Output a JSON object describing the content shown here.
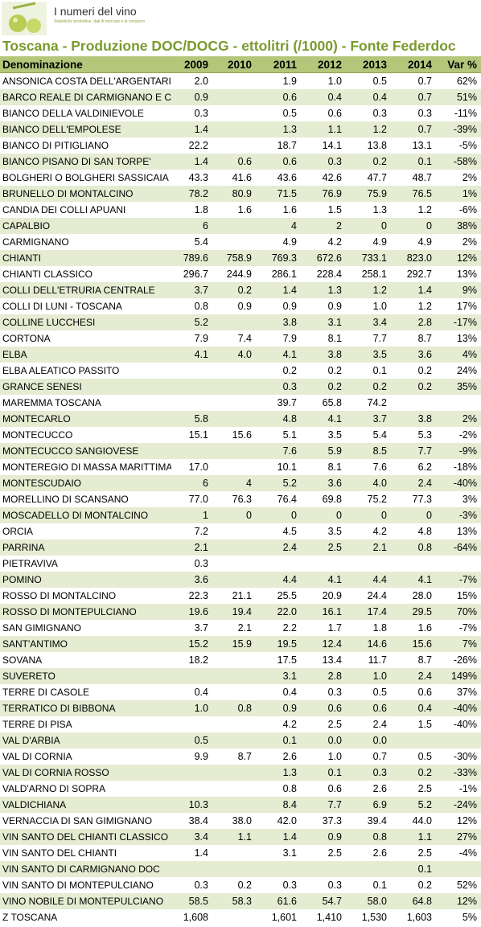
{
  "brand": {
    "name": "I numeri del vino",
    "tagline": "Statistiche produttive, dati di mercato e di consumo"
  },
  "title": "Toscana - Produzione DOC/DOCG - ettolitri (/1000) - Fonte Federdoc",
  "colors": {
    "header_bg": "#b3c77b",
    "row_alt": "#e5ecd2",
    "title": "#7a9a2e"
  },
  "chart_data": {
    "type": "table",
    "columns": [
      "Denominazione",
      "2009",
      "2010",
      "2011",
      "2012",
      "2013",
      "2014",
      "Var %"
    ],
    "rows": [
      {
        "name": "ANSONICA COSTA DELL'ARGENTARI",
        "v": [
          "2.0",
          "",
          "1.9",
          "1.0",
          "0.5",
          "0.7",
          "62%"
        ]
      },
      {
        "name": "BARCO  REALE  DI CARMIGNANO E C",
        "v": [
          "0.9",
          "",
          "0.6",
          "0.4",
          "0.4",
          "0.7",
          "51%"
        ]
      },
      {
        "name": "BIANCO DELLA VALDINIEVOLE",
        "v": [
          "0.3",
          "",
          "0.5",
          "0.6",
          "0.3",
          "0.3",
          "-11%"
        ]
      },
      {
        "name": "BIANCO DELL'EMPOLESE",
        "v": [
          "1.4",
          "",
          "1.3",
          "1.1",
          "1.2",
          "0.7",
          "-39%"
        ]
      },
      {
        "name": "BIANCO DI PITIGLIANO",
        "v": [
          "22.2",
          "",
          "18.7",
          "14.1",
          "13.8",
          "13.1",
          "-5%"
        ]
      },
      {
        "name": "BIANCO PISANO DI SAN TORPE'",
        "v": [
          "1.4",
          "0.6",
          "0.6",
          "0.3",
          "0.2",
          "0.1",
          "-58%"
        ]
      },
      {
        "name": "BOLGHERI O BOLGHERI SASSICAIA",
        "v": [
          "43.3",
          "41.6",
          "43.6",
          "42.6",
          "47.7",
          "48.7",
          "2%"
        ]
      },
      {
        "name": "BRUNELLO DI MONTALCINO",
        "v": [
          "78.2",
          "80.9",
          "71.5",
          "76.9",
          "75.9",
          "76.5",
          "1%"
        ]
      },
      {
        "name": "CANDIA DEI COLLI APUANI",
        "v": [
          "1.8",
          "1.6",
          "1.6",
          "1.5",
          "1.3",
          "1.2",
          "-6%"
        ]
      },
      {
        "name": "CAPALBIO",
        "v": [
          "6",
          "",
          "4",
          "2",
          "0",
          "0",
          "38%"
        ]
      },
      {
        "name": "CARMIGNANO",
        "v": [
          "5.4",
          "",
          "4.9",
          "4.2",
          "4.9",
          "4.9",
          "2%"
        ]
      },
      {
        "name": "CHIANTI",
        "v": [
          "789.6",
          "758.9",
          "769.3",
          "672.6",
          "733.1",
          "823.0",
          "12%"
        ]
      },
      {
        "name": "CHIANTI CLASSICO",
        "v": [
          "296.7",
          "244.9",
          "286.1",
          "228.4",
          "258.1",
          "292.7",
          "13%"
        ]
      },
      {
        "name": "COLLI DELL'ETRURIA CENTRALE",
        "v": [
          "3.7",
          "0.2",
          "1.4",
          "1.3",
          "1.2",
          "1.4",
          "9%"
        ]
      },
      {
        "name": "COLLI DI LUNI - TOSCANA",
        "v": [
          "0.8",
          "0.9",
          "0.9",
          "0.9",
          "1.0",
          "1.2",
          "17%"
        ]
      },
      {
        "name": "COLLINE LUCCHESI",
        "v": [
          "5.2",
          "",
          "3.8",
          "3.1",
          "3.4",
          "2.8",
          "-17%"
        ]
      },
      {
        "name": "CORTONA",
        "v": [
          "7.9",
          "7.4",
          "7.9",
          "8.1",
          "7.7",
          "8.7",
          "13%"
        ]
      },
      {
        "name": "ELBA",
        "v": [
          "4.1",
          "4.0",
          "4.1",
          "3.8",
          "3.5",
          "3.6",
          "4%"
        ]
      },
      {
        "name": "ELBA ALEATICO PASSITO",
        "v": [
          "",
          "",
          "0.2",
          "0.2",
          "0.1",
          "0.2",
          "24%"
        ]
      },
      {
        "name": "GRANCE SENESI",
        "v": [
          "",
          "",
          "0.3",
          "0.2",
          "0.2",
          "0.2",
          "35%"
        ]
      },
      {
        "name": "MAREMMA TOSCANA",
        "v": [
          "",
          "",
          "39.7",
          "65.8",
          "74.2",
          "",
          ""
        ]
      },
      {
        "name": "MONTECARLO",
        "v": [
          "5.8",
          "",
          "4.8",
          "4.1",
          "3.7",
          "3.8",
          "2%"
        ]
      },
      {
        "name": "MONTECUCCO",
        "v": [
          "15.1",
          "15.6",
          "5.1",
          "3.5",
          "5.4",
          "5.3",
          "-2%"
        ]
      },
      {
        "name": "MONTECUCCO SANGIOVESE",
        "v": [
          "",
          "",
          "7.6",
          "5.9",
          "8.5",
          "7.7",
          "-9%"
        ]
      },
      {
        "name": "MONTEREGIO DI MASSA MARITTIMA",
        "v": [
          "17.0",
          "",
          "10.1",
          "8.1",
          "7.6",
          "6.2",
          "-18%"
        ]
      },
      {
        "name": "MONTESCUDAIO",
        "v": [
          "6",
          "4",
          "5.2",
          "3.6",
          "4.0",
          "2.4",
          "-40%"
        ]
      },
      {
        "name": "MORELLINO DI SCANSANO",
        "v": [
          "77.0",
          "76.3",
          "76.4",
          "69.8",
          "75.2",
          "77.3",
          "3%"
        ]
      },
      {
        "name": "MOSCADELLO DI MONTALCINO",
        "v": [
          "1",
          "0",
          "0",
          "0",
          "0",
          "0",
          "-3%"
        ]
      },
      {
        "name": "ORCIA",
        "v": [
          "7.2",
          "",
          "4.5",
          "3.5",
          "4.2",
          "4.8",
          "13%"
        ]
      },
      {
        "name": "PARRINA",
        "v": [
          "2.1",
          "",
          "2.4",
          "2.5",
          "2.1",
          "0.8",
          "-64%"
        ]
      },
      {
        "name": "PIETRAVIVA",
        "v": [
          "0.3",
          "",
          "",
          "",
          "",
          "",
          ""
        ]
      },
      {
        "name": "POMINO",
        "v": [
          "3.6",
          "",
          "4.4",
          "4.1",
          "4.4",
          "4.1",
          "-7%"
        ]
      },
      {
        "name": "ROSSO DI MONTALCINO",
        "v": [
          "22.3",
          "21.1",
          "25.5",
          "20.9",
          "24.4",
          "28.0",
          "15%"
        ]
      },
      {
        "name": "ROSSO DI MONTEPULCIANO",
        "v": [
          "19.6",
          "19.4",
          "22.0",
          "16.1",
          "17.4",
          "29.5",
          "70%"
        ]
      },
      {
        "name": "SAN GIMIGNANO",
        "v": [
          "3.7",
          "2.1",
          "2.2",
          "1.7",
          "1.8",
          "1.6",
          "-7%"
        ]
      },
      {
        "name": "SANT'ANTIMO",
        "v": [
          "15.2",
          "15.9",
          "19.5",
          "12.4",
          "14.6",
          "15.6",
          "7%"
        ]
      },
      {
        "name": "SOVANA",
        "v": [
          "18.2",
          "",
          "17.5",
          "13.4",
          "11.7",
          "8.7",
          "-26%"
        ]
      },
      {
        "name": "SUVERETO",
        "v": [
          "",
          "",
          "3.1",
          "2.8",
          "1.0",
          "2.4",
          "149%"
        ]
      },
      {
        "name": "TERRE DI CASOLE",
        "v": [
          "0.4",
          "",
          "0.4",
          "0.3",
          "0.5",
          "0.6",
          "37%"
        ]
      },
      {
        "name": "TERRATICO DI BIBBONA",
        "v": [
          "1.0",
          "0.8",
          "0.9",
          "0.6",
          "0.6",
          "0.4",
          "-40%"
        ]
      },
      {
        "name": "TERRE DI PISA",
        "v": [
          "",
          "",
          "4.2",
          "2.5",
          "2.4",
          "1.5",
          "-40%"
        ]
      },
      {
        "name": "VAL D'ARBIA",
        "v": [
          "0.5",
          "",
          "0.1",
          "0.0",
          "0.0",
          "",
          ""
        ]
      },
      {
        "name": "VAL DI CORNIA",
        "v": [
          "9.9",
          "8.7",
          "2.6",
          "1.0",
          "0.7",
          "0.5",
          "-30%"
        ]
      },
      {
        "name": "VAL DI CORNIA ROSSO",
        "v": [
          "",
          "",
          "1.3",
          "0.1",
          "0.3",
          "0.2",
          "-33%"
        ]
      },
      {
        "name": "VALD'ARNO DI SOPRA",
        "v": [
          "",
          "",
          "0.8",
          "0.6",
          "2.6",
          "2.5",
          "-1%"
        ]
      },
      {
        "name": "VALDICHIANA",
        "v": [
          "10.3",
          "",
          "8.4",
          "7.7",
          "6.9",
          "5.2",
          "-24%"
        ]
      },
      {
        "name": "VERNACCIA DI SAN GIMIGNANO",
        "v": [
          "38.4",
          "38.0",
          "42.0",
          "37.3",
          "39.4",
          "44.0",
          "12%"
        ]
      },
      {
        "name": "VIN  SANTO  DEL CHIANTI  CLASSICO",
        "v": [
          "3.4",
          "1.1",
          "1.4",
          "0.9",
          "0.8",
          "1.1",
          "27%"
        ]
      },
      {
        "name": "VIN SANTO  DEL CHIANTI",
        "v": [
          "1.4",
          "",
          "3.1",
          "2.5",
          "2.6",
          "2.5",
          "-4%"
        ]
      },
      {
        "name": "VIN SANTO DI CARMIGNANO DOC",
        "v": [
          "",
          "",
          "",
          "",
          "",
          "0.1",
          ""
        ]
      },
      {
        "name": "VIN SANTO DI  MONTEPULCIANO",
        "v": [
          "0.3",
          "0.2",
          "0.3",
          "0.3",
          "0.1",
          "0.2",
          "52%"
        ]
      },
      {
        "name": "VINO NOBILE DI MONTEPULCIANO",
        "v": [
          "58.5",
          "58.3",
          "61.6",
          "54.7",
          "58.0",
          "64.8",
          "12%"
        ]
      },
      {
        "name": "Z TOSCANA",
        "v": [
          "1,608",
          "",
          "1,601",
          "1,410",
          "1,530",
          "1,603",
          "5%"
        ]
      }
    ]
  }
}
